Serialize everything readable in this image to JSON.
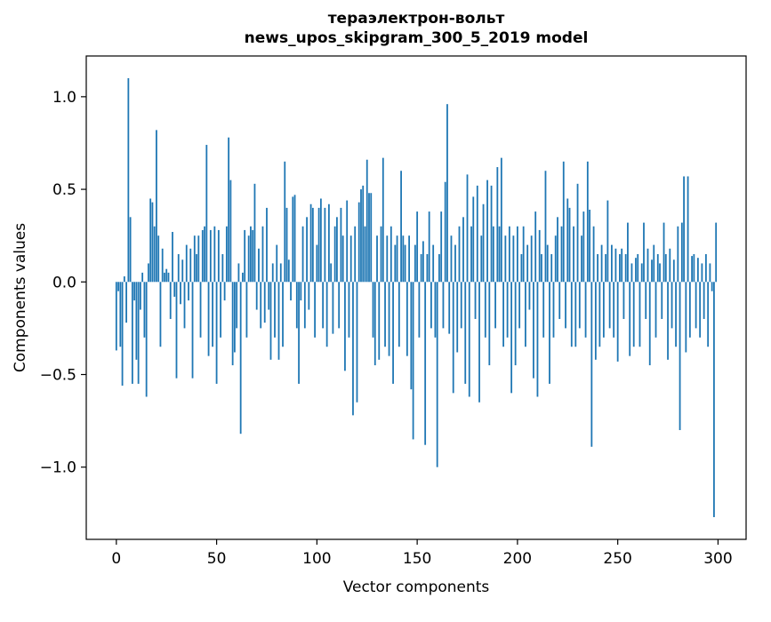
{
  "chart_data": {
    "type": "bar",
    "title": "тераэлектрон-вольт",
    "subtitle": "news_upos_skipgram_300_5_2019 model",
    "xlabel": "Vector components",
    "ylabel": "Components values",
    "bar_color": "#1f77b4",
    "grid": false,
    "legend": "none",
    "xlim": [
      -15,
      314
    ],
    "ylim": [
      -1.39,
      1.22
    ],
    "xticks": [
      0,
      50,
      100,
      150,
      200,
      250,
      300
    ],
    "xtick_labels": [
      "0",
      "50",
      "100",
      "150",
      "200",
      "250",
      "300"
    ],
    "yticks": [
      -1.0,
      -0.5,
      0.0,
      0.5,
      1.0
    ],
    "ytick_labels": [
      "−1.0",
      "−0.5",
      "0.0",
      "0.5",
      "1.0"
    ],
    "x_start": 0,
    "values": [
      -0.37,
      -0.05,
      -0.35,
      -0.56,
      0.03,
      -0.22,
      1.1,
      0.35,
      -0.55,
      -0.1,
      -0.42,
      -0.55,
      -0.15,
      0.05,
      -0.3,
      -0.62,
      0.1,
      0.45,
      0.43,
      0.3,
      0.82,
      0.25,
      -0.35,
      0.18,
      0.05,
      0.07,
      0.05,
      -0.2,
      0.27,
      -0.08,
      -0.52,
      0.15,
      -0.12,
      0.12,
      -0.25,
      0.2,
      -0.1,
      0.18,
      -0.52,
      0.25,
      0.15,
      0.25,
      -0.3,
      0.28,
      0.3,
      0.74,
      -0.4,
      0.28,
      -0.35,
      0.3,
      -0.55,
      0.28,
      -0.3,
      0.15,
      -0.1,
      0.3,
      0.78,
      0.55,
      -0.45,
      -0.38,
      -0.25,
      0.1,
      -0.82,
      0.05,
      0.28,
      -0.3,
      0.25,
      0.3,
      0.28,
      0.53,
      -0.15,
      0.18,
      -0.25,
      0.3,
      -0.22,
      0.4,
      -0.15,
      -0.42,
      0.1,
      -0.3,
      0.2,
      -0.42,
      0.1,
      -0.35,
      0.65,
      0.4,
      0.12,
      -0.1,
      0.46,
      0.47,
      -0.25,
      -0.55,
      -0.1,
      0.3,
      -0.25,
      0.35,
      -0.15,
      0.42,
      0.4,
      -0.3,
      0.2,
      0.4,
      0.45,
      -0.25,
      0.4,
      -0.35,
      0.42,
      0.1,
      -0.28,
      0.3,
      0.35,
      -0.25,
      0.4,
      0.25,
      -0.48,
      0.44,
      -0.3,
      0.25,
      -0.72,
      0.3,
      -0.65,
      0.43,
      0.5,
      0.52,
      0.3,
      0.66,
      0.48,
      0.48,
      -0.3,
      -0.45,
      0.25,
      -0.42,
      0.3,
      0.67,
      -0.35,
      0.25,
      -0.4,
      0.3,
      -0.55,
      0.2,
      0.25,
      -0.35,
      0.6,
      0.25,
      0.2,
      -0.4,
      0.25,
      -0.58,
      -0.85,
      0.2,
      0.38,
      -0.3,
      0.15,
      0.22,
      -0.88,
      0.15,
      0.38,
      -0.25,
      0.2,
      -0.3,
      -1.0,
      0.15,
      0.38,
      -0.25,
      0.54,
      0.96,
      -0.28,
      0.25,
      -0.6,
      0.2,
      -0.38,
      0.3,
      -0.25,
      0.35,
      -0.55,
      0.58,
      -0.62,
      0.3,
      0.46,
      -0.2,
      0.52,
      -0.65,
      0.25,
      0.42,
      -0.3,
      0.55,
      -0.45,
      0.52,
      0.3,
      -0.25,
      0.62,
      0.3,
      0.67,
      -0.35,
      0.25,
      -0.3,
      0.3,
      -0.6,
      0.25,
      -0.45,
      0.3,
      -0.25,
      0.15,
      0.3,
      -0.35,
      0.2,
      -0.15,
      0.25,
      -0.52,
      0.38,
      -0.62,
      0.28,
      0.15,
      -0.3,
      0.6,
      0.2,
      -0.55,
      0.15,
      -0.3,
      0.25,
      0.35,
      -0.2,
      0.3,
      0.65,
      -0.25,
      0.45,
      0.4,
      -0.35,
      0.3,
      -0.35,
      0.53,
      -0.25,
      0.25,
      0.38,
      -0.3,
      0.65,
      0.39,
      -0.89,
      0.3,
      -0.42,
      0.15,
      -0.35,
      0.2,
      -0.3,
      0.15,
      0.44,
      -0.25,
      0.2,
      -0.3,
      0.18,
      -0.43,
      0.15,
      0.18,
      -0.2,
      0.15,
      0.32,
      -0.4,
      0.1,
      -0.35,
      0.13,
      0.15,
      -0.35,
      0.1,
      0.32,
      -0.2,
      0.18,
      -0.45,
      0.12,
      0.2,
      -0.3,
      0.15,
      0.1,
      -0.2,
      0.32,
      0.15,
      -0.42,
      0.18,
      -0.25,
      0.12,
      -0.35,
      0.3,
      -0.8,
      0.32,
      0.57,
      -0.38,
      0.57,
      -0.3,
      0.14,
      0.15,
      -0.25,
      0.13,
      -0.3,
      0.1,
      -0.2,
      0.15,
      -0.35,
      0.1,
      -0.05,
      -1.27,
      0.32
    ]
  }
}
